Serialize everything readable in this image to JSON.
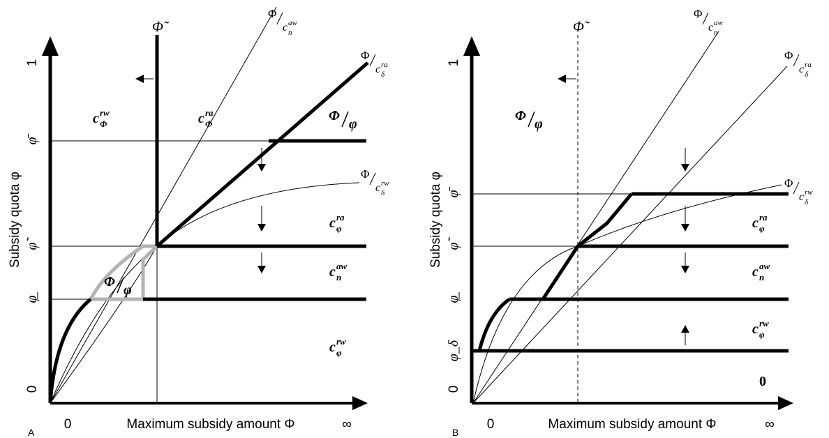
{
  "panels": [
    {
      "id": "A",
      "panel_label": "A",
      "x_axis_label": "Maximum subsidy amount Φ",
      "y_axis_label": "Subsidy quota φ",
      "x_ticks": [
        "0",
        "∞"
      ],
      "y_ticks": [
        "0",
        "φ̲",
        "φ̃",
        "φ̄",
        "1"
      ],
      "phi_tilde_label": "Φ̃",
      "regions": [
        "c_Φ^rw",
        "c_Φ^ra",
        "c_φ^ra",
        "c_n^aw",
        "c_φ^rw"
      ],
      "curve_labels": [
        "Φ/c_n^aw",
        "Φ/c_δ^ra",
        "Φ/c_δ^rw",
        "Φ/φ",
        "Φ/φ"
      ]
    },
    {
      "id": "B",
      "panel_label": "B",
      "x_axis_label": "Maximum subsidy amount Φ",
      "y_axis_label": "Subsidy quota φ",
      "x_ticks": [
        "0",
        "∞"
      ],
      "y_ticks": [
        "0",
        "φ_δ",
        "φ̲",
        "φ̃",
        "φ̄",
        "1"
      ],
      "phi_tilde_label": "Φ̃",
      "regions": [
        "c_φ^ra",
        "c_n^aw",
        "c_φ^rw",
        "0"
      ],
      "curve_labels": [
        "Φ/c_n^aw",
        "Φ/c_δ^ra",
        "Φ/c_δ^rw",
        "Φ/φ"
      ]
    }
  ]
}
